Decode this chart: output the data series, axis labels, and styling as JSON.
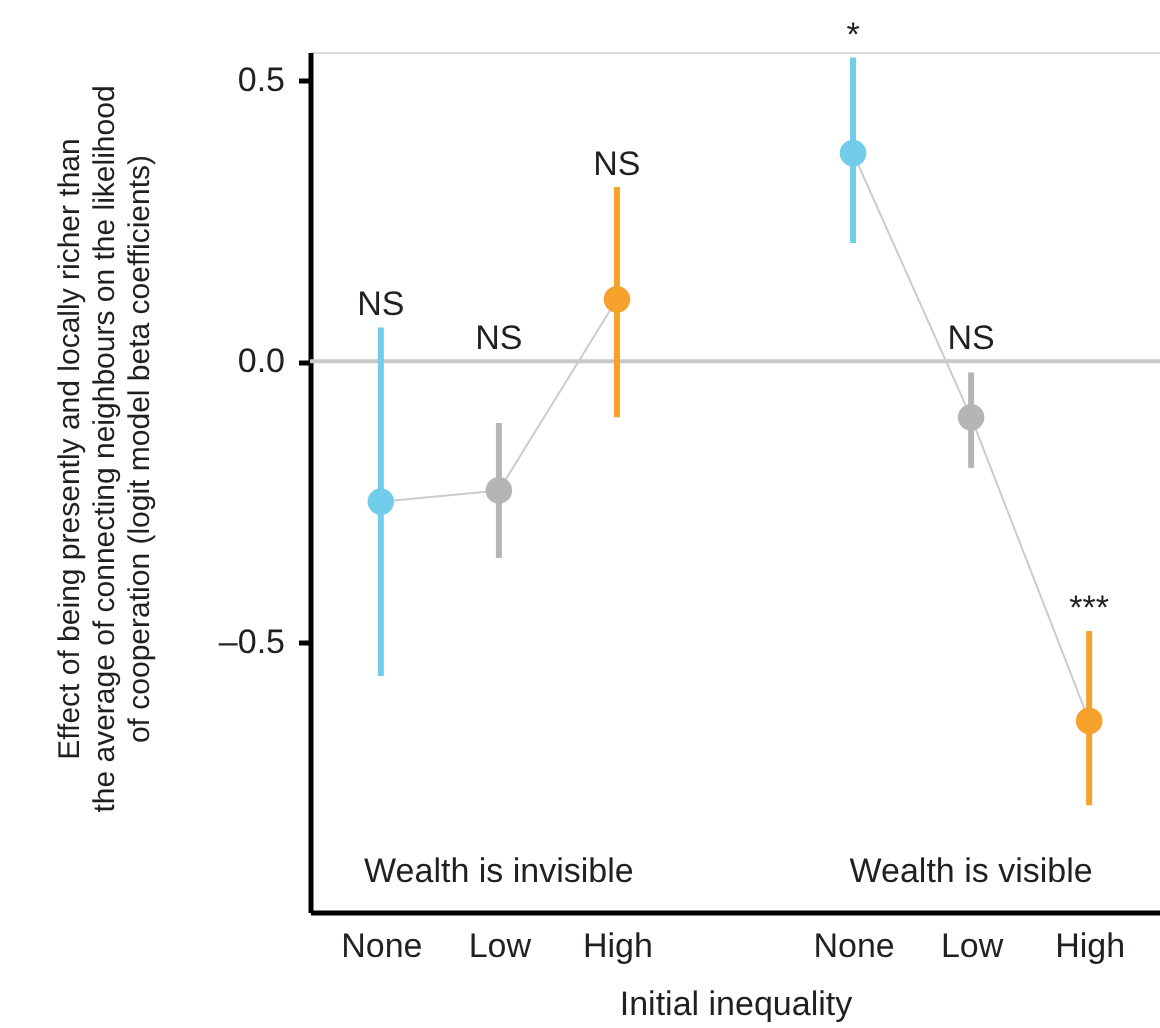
{
  "chart_data": {
    "type": "line",
    "xlabel": "Initial inequality",
    "ylabel": "Effect of being presently and locally richer than\nthe average of connecting neighbours on the likelihood\nof cooperation (logit model beta coefficients)",
    "categories": [
      "None",
      "Low",
      "High",
      null,
      "None",
      "Low",
      "High"
    ],
    "series": [
      {
        "color": "#cccccc",
        "colors": [
          "#72cdea",
          "#b3b5b6",
          "#f6a12c",
          null,
          null,
          null,
          null
        ],
        "values": [
          -0.25,
          -0.23,
          0.11,
          null,
          null,
          null,
          null
        ],
        "errors": [
          [
            -0.56,
            0.06
          ],
          [
            -0.35,
            -0.11
          ],
          [
            -0.1,
            0.31
          ],
          null,
          null,
          null,
          null
        ]
      },
      {
        "color": "#cccccc",
        "colors": [
          null,
          null,
          null,
          null,
          "#72cdea",
          "#b3b5b6",
          "#f6a12c"
        ],
        "values": [
          null,
          null,
          null,
          null,
          0.37,
          -0.1,
          -0.64
        ],
        "errors": [
          null,
          null,
          null,
          null,
          [
            0.21,
            0.54
          ],
          [
            -0.19,
            -0.02
          ],
          [
            -0.79,
            -0.48
          ]
        ]
      }
    ],
    "ylim": [
      -0.98,
      0.55
    ],
    "yticks": [
      0.5,
      {
        "value": 0,
        "label": "0.0"
      },
      {
        "value": -0.5,
        "label": "–0.5"
      }
    ],
    "ref_lines": [
      {
        "axis": "y",
        "value": 0,
        "color": "#c8c8c8"
      }
    ],
    "annotations": [
      {
        "text": "NS",
        "x": "None",
        "y": 0.06
      },
      {
        "text": "NS",
        "x": "Low",
        "y": -0.11
      },
      {
        "text": "NS",
        "x": "High",
        "y": 0.31
      },
      {
        "text": "*",
        "y": 0.54
      },
      {
        "text": "NS",
        "y": -0.02
      },
      {
        "text": "***",
        "y": -0.48
      },
      "Wealth is invisible",
      "Wealth is visible"
    ],
    "marker": "circle",
    "line_style": "solid"
  }
}
